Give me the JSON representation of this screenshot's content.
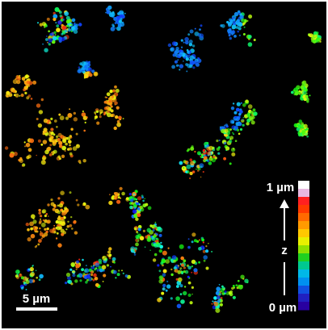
{
  "scale_bar": {
    "label": "5 µm"
  },
  "color_bar": {
    "top_label": "1 µm",
    "axis_label": "z",
    "bottom_label": "0 µm"
  }
}
